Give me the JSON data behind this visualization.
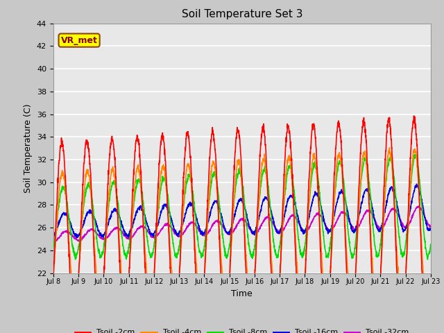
{
  "title": "Soil Temperature Set 3",
  "xlabel": "Time",
  "ylabel": "Soil Temperature (C)",
  "ylim": [
    22,
    44
  ],
  "yticks": [
    22,
    24,
    26,
    28,
    30,
    32,
    34,
    36,
    38,
    40,
    42,
    44
  ],
  "series": {
    "Tsoil -2cm": {
      "color": "#ff0000",
      "lw": 1.2
    },
    "Tsoil -4cm": {
      "color": "#ff8800",
      "lw": 1.2
    },
    "Tsoil -8cm": {
      "color": "#00dd00",
      "lw": 1.2
    },
    "Tsoil -16cm": {
      "color": "#0000dd",
      "lw": 1.2
    },
    "Tsoil -32cm": {
      "color": "#cc00cc",
      "lw": 1.2
    }
  },
  "xtick_labels": [
    "Jul 8",
    "Jul 9",
    "Jul 10",
    "Jul 11",
    "Jul 12",
    "Jul 13",
    "Jul 14",
    "Jul 15",
    "Jul 16",
    "Jul 17",
    "Jul 18",
    "Jul 19",
    "Jul 20",
    "Jul 21",
    "Jul 22",
    "Jul 23"
  ],
  "annotation_text": "VR_met",
  "annotation_bg": "#ffff00",
  "annotation_border": "#8B4513",
  "fig_bg": "#c8c8c8",
  "plot_bg": "#e8e8e8"
}
